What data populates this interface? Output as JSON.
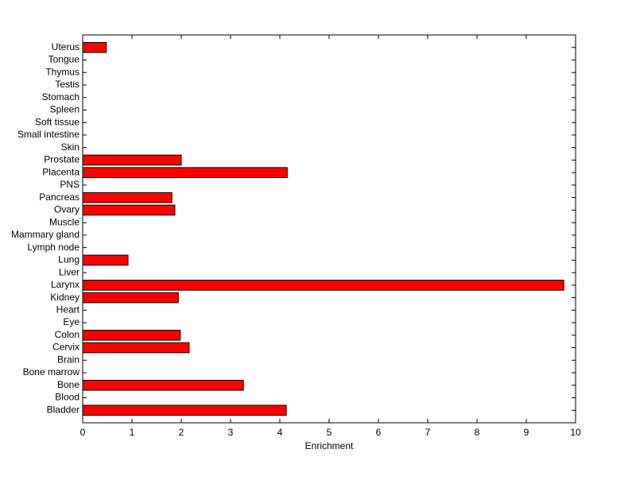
{
  "chart_data": {
    "type": "barh",
    "xlabel": "Enrichment",
    "categories": [
      "Bladder",
      "Blood",
      "Bone",
      "Bone marrow",
      "Brain",
      "Cervix",
      "Colon",
      "Eye",
      "Heart",
      "Kidney",
      "Larynx",
      "Liver",
      "Lung",
      "Lymph node",
      "Mammary gland",
      "Muscle",
      "Ovary",
      "Pancreas",
      "PNS",
      "Placenta",
      "Prostate",
      "Skin",
      "Small intestine",
      "Soft tissue",
      "Spleen",
      "Stomach",
      "Testis",
      "Thymus",
      "Tongue",
      "Uterus"
    ],
    "values": [
      4.13,
      0,
      3.26,
      0,
      0,
      2.16,
      1.98,
      0,
      0,
      1.94,
      9.76,
      0,
      0.92,
      0,
      0,
      0,
      1.87,
      1.81,
      0,
      4.15,
      2.0,
      0,
      0,
      0,
      0,
      0,
      0,
      0,
      0,
      0.48
    ],
    "color": "#ff0000",
    "xlim": [
      0,
      10
    ],
    "xticks": [
      0,
      1,
      2,
      3,
      4,
      5,
      6,
      7,
      8,
      9,
      10
    ]
  }
}
